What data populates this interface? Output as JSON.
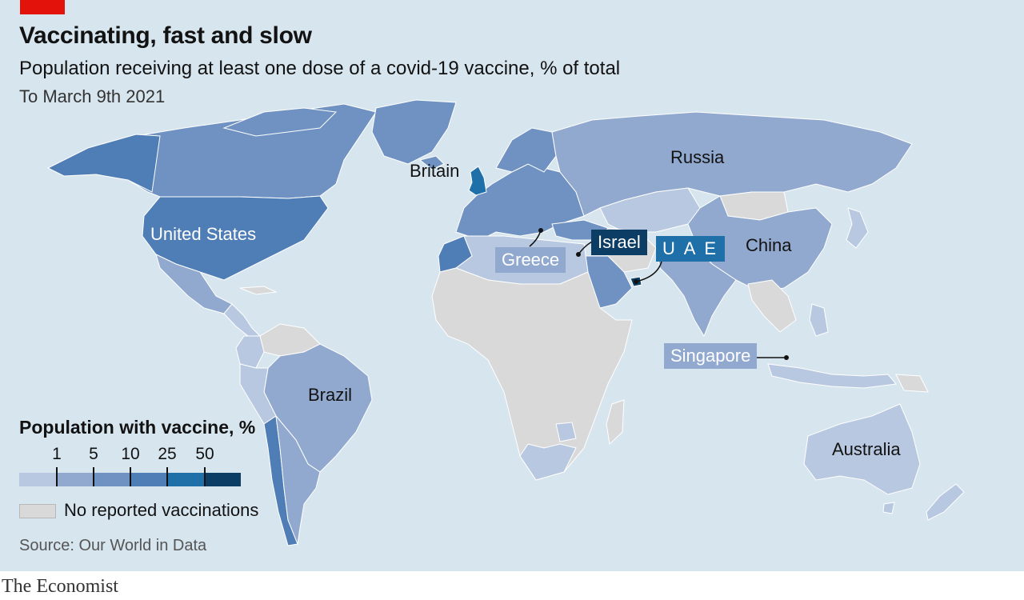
{
  "header": {
    "title": "Vaccinating, fast and slow",
    "subtitle": "Population receiving at least one dose of a covid-19 vaccine, % of total",
    "date": "To March 9th 2021"
  },
  "legend": {
    "title": "Population with vaccine, %",
    "ticks": [
      "1",
      "5",
      "10",
      "25",
      "50"
    ],
    "colors": [
      "#b8c8e0",
      "#91a9cf",
      "#6f92c2",
      "#4f7db5",
      "#1f6fa8",
      "#0c3d64"
    ],
    "no_data_color": "#d9d9d9",
    "no_data_label": "No reported vaccinations"
  },
  "labels": {
    "britain": "Britain",
    "russia": "Russia",
    "united_states": "United States",
    "china": "China",
    "brazil": "Brazil",
    "australia": "Australia",
    "greece": "Greece",
    "israel": "Israel",
    "uae": "U A E",
    "singapore": "Singapore"
  },
  "source": "Source: Our World in Data",
  "brand": "The Economist",
  "colors": {
    "ocean": "#d7e5ee",
    "accent_red": "#e3120b",
    "no_data": "#d9d9d9"
  }
}
